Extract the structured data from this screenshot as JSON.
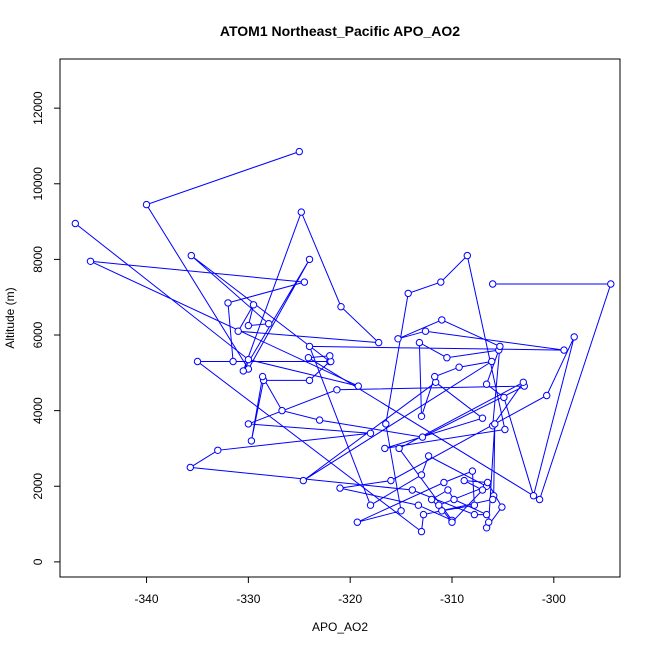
{
  "chart_data": {
    "type": "line",
    "title": "ATOM1 Northeast_Pacific APO_AO2",
    "xlabel": "APO_AO2",
    "ylabel": "Altitude (m)",
    "xlim": [
      -348.5,
      -293.5
    ],
    "ylim": [
      -400,
      13300
    ],
    "x_ticks": [
      -340,
      -330,
      -320,
      -310,
      -300
    ],
    "x_tick_labels": [
      "-340",
      "-330",
      "-320",
      "-310",
      "-300"
    ],
    "y_ticks": [
      0,
      2000,
      4000,
      6000,
      8000,
      10000,
      12000
    ],
    "y_tick_labels": [
      "0",
      "2000",
      "4000",
      "6000",
      "8000",
      "10000",
      "12000"
    ],
    "series": [
      {
        "color": "#0000ff",
        "marker": "open-circle",
        "x": [
          -325.0,
          -340.0,
          -330.0,
          -324.0,
          -330.5,
          -324.8,
          -320.9,
          -317.2,
          -331.0,
          -329.5,
          -330.0,
          -328.0,
          -335.6,
          -322.0,
          -324.0,
          -328.5,
          -329.7,
          -328.6,
          -326.7,
          -323.0,
          -312.9,
          -302.9,
          -321.3,
          -330.0,
          -318.0,
          -333.0,
          -335.7,
          -313.9,
          -307.8,
          -306.6,
          -309.8,
          -310.4,
          -312.0,
          -311.0,
          -307.8,
          -308.0,
          -310.8,
          -319.3,
          -315.0,
          -316.5,
          -314.3,
          -311.1,
          -308.5,
          -304.8,
          -316.6,
          -307.0,
          -311.6,
          -324.6,
          -306.1,
          -309.3,
          -311.7,
          -313.0,
          -313.2,
          -310.5,
          -305.4,
          -306.6,
          -304.9,
          -302.0,
          -298.0,
          -300.7,
          -316.0,
          -321.0,
          -313.3,
          -310.0,
          -315.2,
          -303.0,
          -306.0,
          -305.3,
          -311.0,
          -315.3,
          -312.6,
          -299.0,
          -324.0,
          -318.0,
          -313.0,
          -312.3,
          -306.6,
          -311.3,
          -310.0,
          -307.0,
          -308.8,
          -306.5,
          -305.1,
          -306.6,
          -306.4,
          -305.8,
          -305.9,
          -306.0,
          -312.8,
          -313.0,
          -335.0,
          -321.9,
          -322.0,
          -324.1,
          -301.4,
          -294.4,
          -306.0
        ],
        "y": [
          10850,
          9450,
          5100,
          8000,
          5050,
          9250,
          6750,
          5800,
          6100,
          6800,
          6250,
          6300,
          8100,
          5300,
          4800,
          4800,
          3200,
          4900,
          4000,
          3750,
          3300,
          4650,
          4550,
          3650,
          3400,
          2950,
          2500,
          1900,
          1250,
          1250,
          1650,
          1900,
          1650,
          1350,
          1500,
          2400,
          2100,
          1050,
          1350,
          3650,
          7100,
          7400,
          8100,
          3500,
          3000,
          3800,
          4750,
          2150,
          5300,
          5150,
          4900,
          3850,
          5800,
          5400,
          5600,
          4700,
          4350,
          1750,
          5950,
          4400,
          2150,
          1950,
          1500,
          1100,
          3000,
          4750,
          3600,
          5700,
          6400,
          5900,
          6100,
          5600,
          5700,
          1500,
          2300,
          2800,
          2000,
          1500,
          1050,
          1900,
          2150,
          2100,
          1450,
          900,
          1050,
          3650,
          1750,
          1650,
          1250,
          800,
          5300,
          5300,
          5450,
          5400,
          1650,
          7350,
          7350
        ]
      },
      {
        "color": "#0000ff",
        "marker": "open-circle",
        "x": [
          -347.0,
          -330.0,
          -319.2,
          -345.5,
          -324.5,
          -332.0,
          -331.5
        ],
        "y": [
          8950,
          5350,
          4650,
          7950,
          7400,
          6850,
          5300
        ]
      }
    ]
  }
}
